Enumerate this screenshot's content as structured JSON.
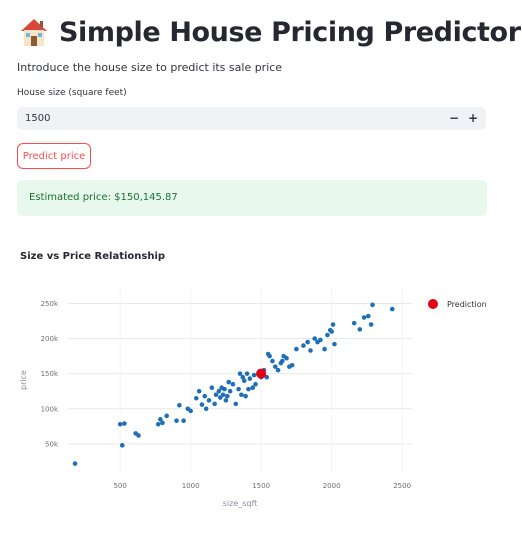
{
  "header": {
    "title": "Simple House Pricing Predictor",
    "subtitle": "Introduce the house size to predict its sale price",
    "icon": "house-emoji-icon"
  },
  "form": {
    "field_label": "House size (square feet)",
    "field_value": "1500",
    "minus_label": "−",
    "plus_label": "+",
    "button_label": "Predict price"
  },
  "result": {
    "text": "Estimated price: $150,145.87"
  },
  "colors": {
    "accent": "#ff4b4b",
    "success_bg": "#e8f8ec",
    "success_text": "#177233",
    "points": "#1f6fb8",
    "prediction": "#e60012"
  },
  "chart_data": {
    "type": "scatter",
    "title": "Size vs Price Relationship",
    "xlabel": "size_sqft",
    "ylabel": "price",
    "xlim": [
      130,
      2570
    ],
    "ylim": [
      10000,
      272000
    ],
    "x_ticks": [
      500,
      1000,
      1500,
      2000,
      2500
    ],
    "x_tick_labels": [
      "500",
      "1000",
      "1500",
      "2000",
      "2500"
    ],
    "y_ticks": [
      50000,
      100000,
      150000,
      200000,
      250000
    ],
    "y_tick_labels": [
      "50k",
      "100k",
      "150k",
      "200k",
      "250k"
    ],
    "grid": true,
    "legend": "top-right",
    "series": [
      {
        "x": [
          180,
          500,
          515,
          530,
          610,
          630,
          770,
          785,
          800,
          830,
          900,
          920,
          950,
          980,
          1000,
          1040,
          1060,
          1080,
          1100,
          1110,
          1130,
          1150,
          1170,
          1180,
          1200,
          1210,
          1220,
          1230,
          1240,
          1250,
          1260,
          1270,
          1280,
          1300,
          1320,
          1340,
          1350,
          1360,
          1370,
          1380,
          1390,
          1400,
          1410,
          1420,
          1440,
          1450,
          1460,
          1480,
          1500,
          1520,
          1540,
          1550,
          1560,
          1580,
          1600,
          1620,
          1640,
          1650,
          1660,
          1680,
          1700,
          1720,
          1750,
          1800,
          1830,
          1850,
          1880,
          1900,
          1920,
          1950,
          1970,
          1990,
          2000,
          2010,
          2020,
          2160,
          2200,
          2230,
          2260,
          2280,
          2290,
          2430
        ],
        "y": [
          22000,
          78000,
          48000,
          79000,
          65000,
          62000,
          78000,
          85000,
          80000,
          90000,
          83000,
          105000,
          83000,
          100000,
          97000,
          115000,
          125000,
          106000,
          118000,
          100000,
          112000,
          130000,
          107000,
          120000,
          125000,
          116000,
          130000,
          120000,
          128000,
          112000,
          118000,
          138000,
          125000,
          135000,
          107000,
          128000,
          150000,
          120000,
          145000,
          140000,
          118000,
          150000,
          128000,
          143000,
          130000,
          148000,
          135000,
          150000,
          145000,
          155000,
          145000,
          178000,
          175000,
          168000,
          160000,
          155000,
          165000,
          168000,
          175000,
          172000,
          160000,
          162000,
          185000,
          190000,
          195000,
          183000,
          200000,
          195000,
          198000,
          185000,
          205000,
          212000,
          210000,
          220000,
          192000,
          222000,
          213000,
          230000,
          232000,
          220000,
          248000,
          242000
        ]
      },
      {
        "name": "Prediction",
        "x": [
          1500
        ],
        "y": [
          150146
        ]
      }
    ]
  }
}
